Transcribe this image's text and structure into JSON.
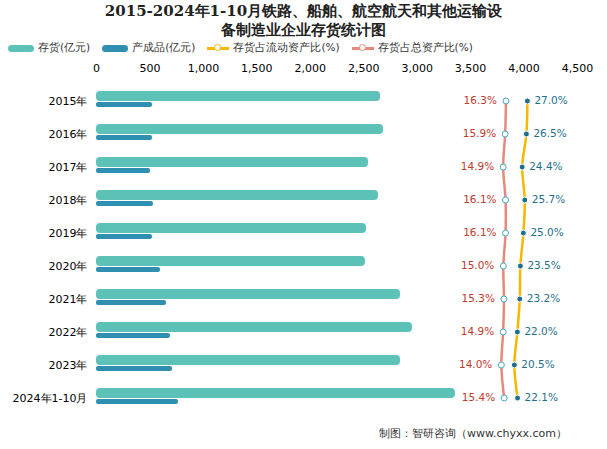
{
  "chart_data": {
    "type": "bar",
    "title": "2015-2024年1-10月铁路、船舶、航空航天和其他运输设备制造业企业存货统计图",
    "caption": "制图：智研咨询（www.chyxx.com）",
    "orientation": "horizontal",
    "categories": [
      "2015年",
      "2016年",
      "2017年",
      "2018年",
      "2019年",
      "2020年",
      "2021年",
      "2022年",
      "2023年",
      "2024年1-10月"
    ],
    "series": [
      {
        "name": "存货(亿元)",
        "type": "bar",
        "color": "#5cc2b8",
        "values": [
          2657,
          2685,
          2545,
          2638,
          2526,
          2516,
          2844,
          2956,
          2844,
          3358
        ]
      },
      {
        "name": "产成品(亿元)",
        "type": "bar",
        "color": "#2f8fb0",
        "values": [
          524,
          524,
          505,
          533,
          524,
          599,
          655,
          692,
          711,
          767
        ]
      },
      {
        "name": "存货占流动资产比(%)",
        "type": "line",
        "axis": "y2",
        "color": "#f5b800",
        "marker": "circle",
        "data_labels": true,
        "values": [
          27.0,
          26.5,
          24.4,
          25.7,
          25.0,
          23.5,
          23.2,
          22.0,
          20.5,
          22.1
        ],
        "value_labels": [
          "27.0%",
          "26.5%",
          "24.4%",
          "25.7%",
          "25.0%",
          "23.5%",
          "23.2%",
          "22.0%",
          "20.5%",
          "22.1%"
        ]
      },
      {
        "name": "存货占总资产比(%)",
        "type": "line",
        "axis": "y2",
        "color": "#e58a7a",
        "marker": "circle",
        "data_labels": true,
        "values": [
          16.3,
          15.9,
          14.9,
          16.1,
          16.1,
          15.0,
          15.3,
          14.9,
          14.0,
          15.4
        ],
        "value_labels": [
          "16.3%",
          "15.9%",
          "14.9%",
          "16.1%",
          "16.1%",
          "15.0%",
          "15.3%",
          "14.9%",
          "14.0%",
          "15.4%"
        ]
      }
    ],
    "xlim": [
      0,
      4500
    ],
    "xticks": [
      0,
      500,
      1000,
      1500,
      2000,
      2500,
      3000,
      3500,
      4000,
      4500
    ],
    "y2lim": [
      -188,
      52
    ],
    "grid": false
  }
}
